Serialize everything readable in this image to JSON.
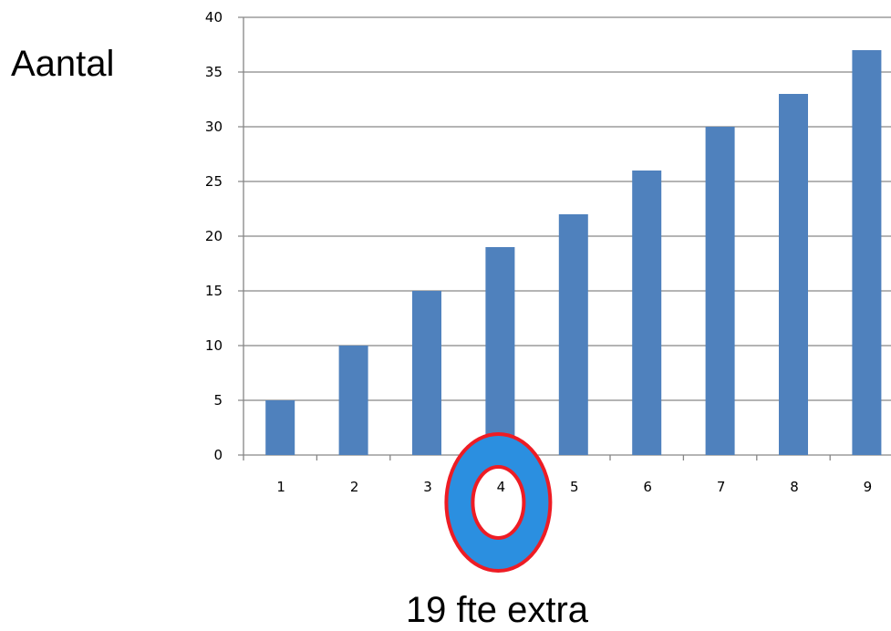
{
  "chart_data": {
    "type": "bar",
    "categories": [
      "1",
      "2",
      "3",
      "4",
      "5",
      "6",
      "7",
      "8",
      "9"
    ],
    "values": [
      5,
      10,
      15,
      19,
      22,
      26,
      30,
      33,
      37
    ],
    "title": "",
    "xlabel": "",
    "ylabel": "Aantal",
    "ylim": [
      0,
      40
    ],
    "yticks": [
      "0",
      "5",
      "10",
      "15",
      "20",
      "25",
      "30",
      "35",
      "40"
    ],
    "grid": true,
    "legend": "none",
    "highlight_category": "4",
    "annotation": "19 fte extra",
    "colors": {
      "bar": "#4f81bd",
      "grid": "#868686",
      "axis": "#868686",
      "highlight_fill": "#2b8fe0",
      "highlight_ring": "#ee1c24"
    }
  }
}
